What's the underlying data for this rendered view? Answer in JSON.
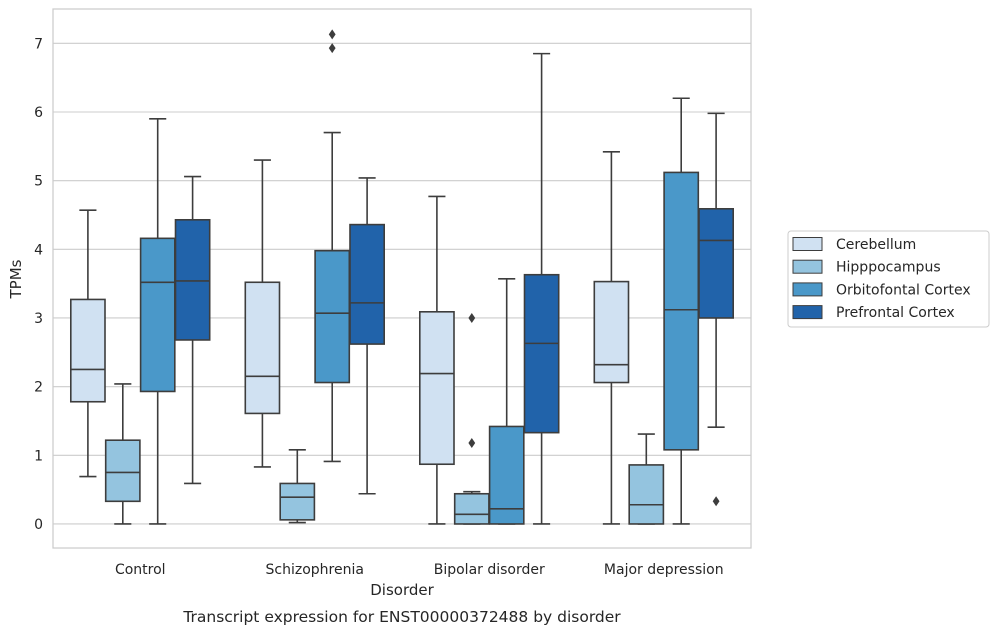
{
  "caption": "Transcript expression for ENST00000372488 by disorder",
  "chart_data": {
    "type": "box",
    "xlabel": "Disorder",
    "ylabel": "TPMs",
    "ylim": [
      -0.35,
      7.5
    ],
    "yticks": [
      0,
      1,
      2,
      3,
      4,
      5,
      6,
      7
    ],
    "grid": "horizontal",
    "legend_position": "right",
    "categories": [
      "Control",
      "Schizophrenia",
      "Bipolar disorder",
      "Major depression"
    ],
    "series": [
      {
        "name": "Cerebellum",
        "color": "#d0e1f2",
        "boxes": [
          {
            "whislo": 0.69,
            "q1": 1.78,
            "med": 2.25,
            "q3": 3.27,
            "whishi": 4.57,
            "fliers": []
          },
          {
            "whislo": 0.83,
            "q1": 1.61,
            "med": 2.15,
            "q3": 3.52,
            "whishi": 5.3,
            "fliers": []
          },
          {
            "whislo": 0.0,
            "q1": 0.87,
            "med": 2.19,
            "q3": 3.09,
            "whishi": 4.77,
            "fliers": []
          },
          {
            "whislo": 0.0,
            "q1": 2.06,
            "med": 2.32,
            "q3": 3.53,
            "whishi": 5.42,
            "fliers": []
          }
        ]
      },
      {
        "name": "Hipppocampus",
        "color": "#94c4df",
        "boxes": [
          {
            "whislo": 0.0,
            "q1": 0.33,
            "med": 0.75,
            "q3": 1.22,
            "whishi": 2.04,
            "fliers": []
          },
          {
            "whislo": 0.02,
            "q1": 0.06,
            "med": 0.39,
            "q3": 0.59,
            "whishi": 1.08,
            "fliers": []
          },
          {
            "whislo": 0.0,
            "q1": 0.0,
            "med": 0.14,
            "q3": 0.44,
            "whishi": 0.47,
            "fliers": [
              3.0,
              1.18
            ]
          },
          {
            "whislo": 0.0,
            "q1": 0.0,
            "med": 0.28,
            "q3": 0.86,
            "whishi": 1.31,
            "fliers": []
          }
        ]
      },
      {
        "name": "Orbitofontal Cortex",
        "color": "#4a98c9",
        "boxes": [
          {
            "whislo": 0.0,
            "q1": 1.93,
            "med": 3.52,
            "q3": 4.16,
            "whishi": 5.9,
            "fliers": []
          },
          {
            "whislo": 0.91,
            "q1": 2.06,
            "med": 3.07,
            "q3": 3.98,
            "whishi": 5.7,
            "fliers": [
              7.13,
              6.93
            ]
          },
          {
            "whislo": 0.0,
            "q1": 0.0,
            "med": 0.22,
            "q3": 1.42,
            "whishi": 3.57,
            "fliers": []
          },
          {
            "whislo": 0.0,
            "q1": 1.08,
            "med": 3.12,
            "q3": 5.12,
            "whishi": 6.2,
            "fliers": []
          }
        ]
      },
      {
        "name": "Prefrontal Cortex",
        "color": "#2163aa",
        "boxes": [
          {
            "whislo": 0.59,
            "q1": 2.68,
            "med": 3.54,
            "q3": 4.43,
            "whishi": 5.06,
            "fliers": []
          },
          {
            "whislo": 0.44,
            "q1": 2.62,
            "med": 3.22,
            "q3": 4.36,
            "whishi": 5.04,
            "fliers": []
          },
          {
            "whislo": 0.0,
            "q1": 1.33,
            "med": 2.63,
            "q3": 3.63,
            "whishi": 6.85,
            "fliers": []
          },
          {
            "whislo": 1.41,
            "q1": 3.0,
            "med": 4.13,
            "q3": 4.59,
            "whishi": 5.98,
            "fliers": [
              0.33
            ]
          }
        ]
      }
    ]
  }
}
